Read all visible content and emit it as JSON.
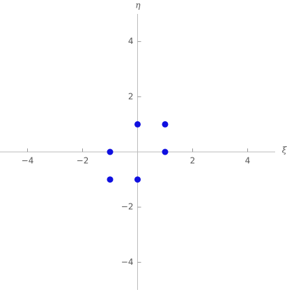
{
  "chart_data": {
    "type": "scatter",
    "xlabel": "ξ",
    "ylabel": "η",
    "x": [
      0,
      1,
      -1,
      1,
      -1,
      0
    ],
    "values": [
      1,
      1,
      0,
      0,
      -1,
      -1
    ],
    "color": "#1010e0",
    "xlim": [
      -5,
      5
    ],
    "ylim": [
      -5,
      5
    ],
    "xticks": [
      {
        "value": -4,
        "label": "−4"
      },
      {
        "value": -2,
        "label": "−2"
      },
      2,
      4
    ],
    "yticks": [
      {
        "value": -4,
        "label": "−4"
      },
      {
        "value": -2,
        "label": "−2"
      },
      2,
      4
    ]
  }
}
